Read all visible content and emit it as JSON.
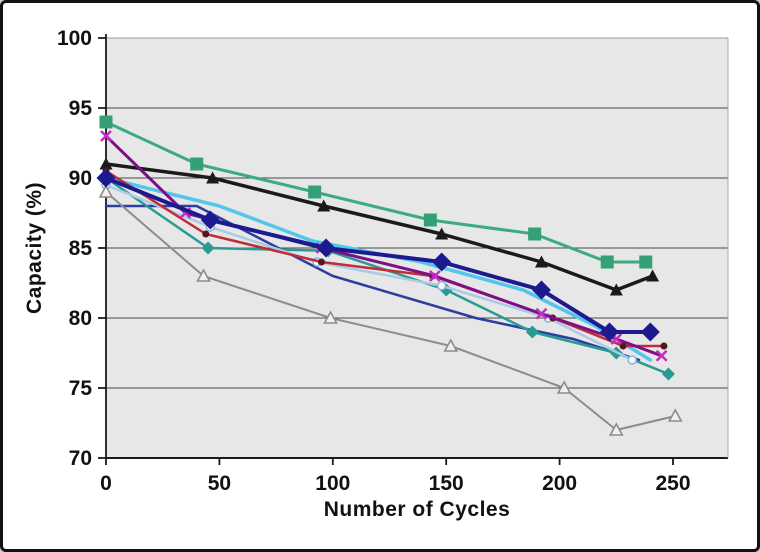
{
  "frame": {
    "border_color": "#111111",
    "background": "#ffffff"
  },
  "chart_data": {
    "type": "line",
    "title": "",
    "xlabel": "Number of Cycles",
    "ylabel": "Capacity (%)",
    "xlim": [
      0,
      274
    ],
    "ylim": [
      70,
      100
    ],
    "x_ticks": [
      0,
      50,
      100,
      150,
      200,
      250
    ],
    "y_ticks": [
      70,
      75,
      80,
      85,
      90,
      95,
      100
    ],
    "grid": "horizontal-only",
    "legend_position": "none",
    "plot_background": "#e7e7e7",
    "gridline_color": "#4a4a4a",
    "axis_color": "#1a1a1a",
    "series": [
      {
        "name": "green-squares",
        "color": "#3cab80",
        "marker": "square",
        "marker_color": "#35a076",
        "marker_size": 13,
        "width": 3,
        "x": [
          0,
          40,
          92,
          143,
          189,
          221,
          238
        ],
        "y": [
          94,
          91,
          89,
          87,
          86,
          84,
          84
        ]
      },
      {
        "name": "black-triangles",
        "color": "#1a1a1a",
        "marker": "triangle",
        "marker_color": "#1a1a1a",
        "marker_size": 11,
        "width": 3.5,
        "x": [
          0,
          47,
          96,
          148,
          192,
          225,
          241
        ],
        "y": [
          91,
          90,
          88,
          86,
          84,
          82,
          83
        ]
      },
      {
        "name": "royal-blue-plain",
        "color": "#2c3ea0",
        "marker": "none",
        "marker_color": "#2c3ea0",
        "marker_size": 0,
        "width": 2.5,
        "x": [
          0,
          40,
          70,
          100,
          163,
          206,
          235
        ],
        "y": [
          88,
          88,
          85.5,
          83,
          80,
          78.5,
          77
        ]
      },
      {
        "name": "cyan-plain",
        "color": "#53c6ea",
        "marker": "none",
        "marker_color": "#53c6ea",
        "marker_size": 0,
        "width": 3.5,
        "x": [
          0,
          50,
          91,
          139,
          184,
          215,
          240
        ],
        "y": [
          90,
          88,
          85.5,
          84,
          82,
          79.5,
          77
        ]
      },
      {
        "name": "teal-diamonds",
        "color": "#2a9a93",
        "marker": "diamond",
        "marker_color": "#2a9a93",
        "marker_size": 9,
        "width": 2.5,
        "x": [
          0,
          45,
          98,
          150,
          188,
          225,
          248
        ],
        "y": [
          90,
          85,
          84.8,
          82,
          79,
          77.5,
          76
        ]
      },
      {
        "name": "pale-blue-circles",
        "color": "#a9cbe8",
        "marker": "circle-open",
        "marker_color": "#8fb4d8",
        "marker_size": 8,
        "width": 2.5,
        "x": [
          0,
          46,
          93,
          148,
          195,
          232
        ],
        "y": [
          89.5,
          86.5,
          84,
          82.3,
          80,
          77
        ]
      },
      {
        "name": "crimson-dots",
        "color": "#c22b3a",
        "marker": "dot",
        "marker_color": "#59151e",
        "marker_size": 7,
        "width": 2.5,
        "x": [
          0,
          44,
          95,
          144,
          197,
          228,
          246
        ],
        "y": [
          90.5,
          86,
          84,
          83,
          80,
          78,
          78
        ]
      },
      {
        "name": "purple-x",
        "color": "#7d1086",
        "marker": "x",
        "marker_color": "#c42cc4",
        "marker_size": 10,
        "width": 3,
        "x": [
          0,
          35,
          95,
          145,
          192,
          225,
          245
        ],
        "y": [
          93,
          87.5,
          85,
          83,
          80.3,
          78.5,
          77.3
        ]
      },
      {
        "name": "gray-triangles",
        "color": "#8c8c8c",
        "marker": "tri-open",
        "marker_color": "#8c8c8c",
        "marker_size": 10,
        "width": 2,
        "x": [
          0,
          43,
          99,
          152,
          202,
          225,
          251
        ],
        "y": [
          89,
          83,
          80,
          78,
          75,
          72,
          73
        ]
      },
      {
        "name": "navy-diamonds",
        "color": "#1b1b8f",
        "marker": "diamond",
        "marker_color": "#1b1b8f",
        "marker_size": 15,
        "width": 4,
        "x": [
          0,
          46,
          97,
          148,
          192,
          222,
          240
        ],
        "y": [
          90,
          87,
          85,
          84,
          82,
          79,
          79
        ]
      }
    ]
  }
}
